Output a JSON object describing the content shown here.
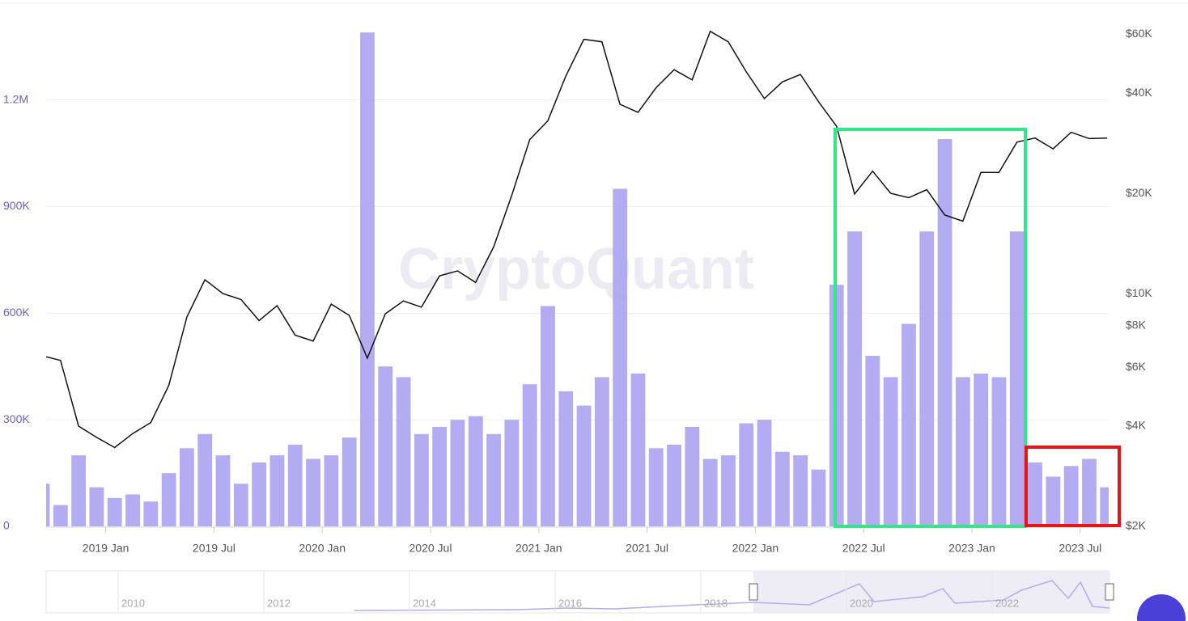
{
  "chart_data": {
    "type": "bar-line",
    "watermark": "CryptoQuant",
    "categories": [
      null,
      null,
      null,
      null,
      "2019 Jan",
      null,
      null,
      null,
      null,
      null,
      "2019 Jul",
      null,
      null,
      null,
      null,
      null,
      "2020 Jan",
      null,
      null,
      null,
      null,
      null,
      "2020 Jul",
      null,
      null,
      null,
      null,
      null,
      "2021 Jan",
      null,
      null,
      null,
      null,
      null,
      "2021 Jul",
      null,
      null,
      null,
      null,
      null,
      "2022 Jan",
      null,
      null,
      null,
      null,
      null,
      "2022 Jul",
      null,
      null,
      null,
      null,
      null,
      "2023 Jan",
      null,
      null,
      null,
      null,
      null,
      "2023 Jul",
      null
    ],
    "series": [
      {
        "type": "bar",
        "color": "#a79ef0",
        "values": [
          120000,
          60000,
          200000,
          110000,
          80000,
          90000,
          70000,
          150000,
          220000,
          260000,
          200000,
          120000,
          180000,
          200000,
          230000,
          190000,
          200000,
          250000,
          1390000,
          450000,
          420000,
          260000,
          280000,
          300000,
          310000,
          260000,
          300000,
          400000,
          620000,
          380000,
          340000,
          420000,
          950000,
          430000,
          220000,
          230000,
          280000,
          190000,
          200000,
          290000,
          300000,
          210000,
          200000,
          160000,
          680000,
          830000,
          480000,
          420000,
          570000,
          830000,
          1090000,
          420000,
          430000,
          420000,
          830000,
          180000,
          140000,
          170000,
          190000,
          110000
        ]
      },
      {
        "type": "line",
        "axis": "y2",
        "color": "#111111",
        "values": [
          6500,
          6300,
          4000,
          3700,
          3450,
          3800,
          4100,
          5300,
          8500,
          11000,
          10000,
          9600,
          8300,
          9200,
          7500,
          7200,
          9300,
          8600,
          6400,
          8700,
          9500,
          9100,
          11300,
          11700,
          10800,
          13800,
          19700,
          29000,
          33000,
          45000,
          58000,
          57000,
          37000,
          35000,
          41500,
          47000,
          43800,
          61300,
          57000,
          46300,
          38500,
          43200,
          45500,
          37700,
          31800,
          19900,
          23300,
          20000,
          19400,
          20500,
          17200,
          16500,
          23100,
          23100,
          28500,
          29300,
          27200,
          30500,
          29200,
          29300
        ]
      }
    ],
    "ylim": [
      0,
      1470000
    ],
    "yticks": [
      0,
      {
        "value": 300000,
        "label": "300K"
      },
      {
        "value": 600000,
        "label": "600K"
      },
      {
        "value": 900000,
        "label": "900K"
      },
      {
        "value": 1200000,
        "label": "1.2M"
      }
    ],
    "y2lim": [
      2000,
      74000
    ],
    "y2log": true,
    "y2ticks": [
      {
        "value": 2000,
        "label": "$2K"
      },
      {
        "value": 4000,
        "label": "$4K"
      },
      {
        "value": 6000,
        "label": "$6K"
      },
      {
        "value": 8000,
        "label": "$8K"
      },
      {
        "value": 10000,
        "label": "$10K"
      },
      {
        "value": 20000,
        "label": "$20K"
      },
      {
        "value": 40000,
        "label": "$40K"
      },
      {
        "value": 60000,
        "label": "$60K"
      }
    ],
    "grid": true,
    "navigator_labels": [
      "2010",
      "2012",
      "2014",
      "2016",
      "2018",
      "2020",
      "2022"
    ]
  }
}
